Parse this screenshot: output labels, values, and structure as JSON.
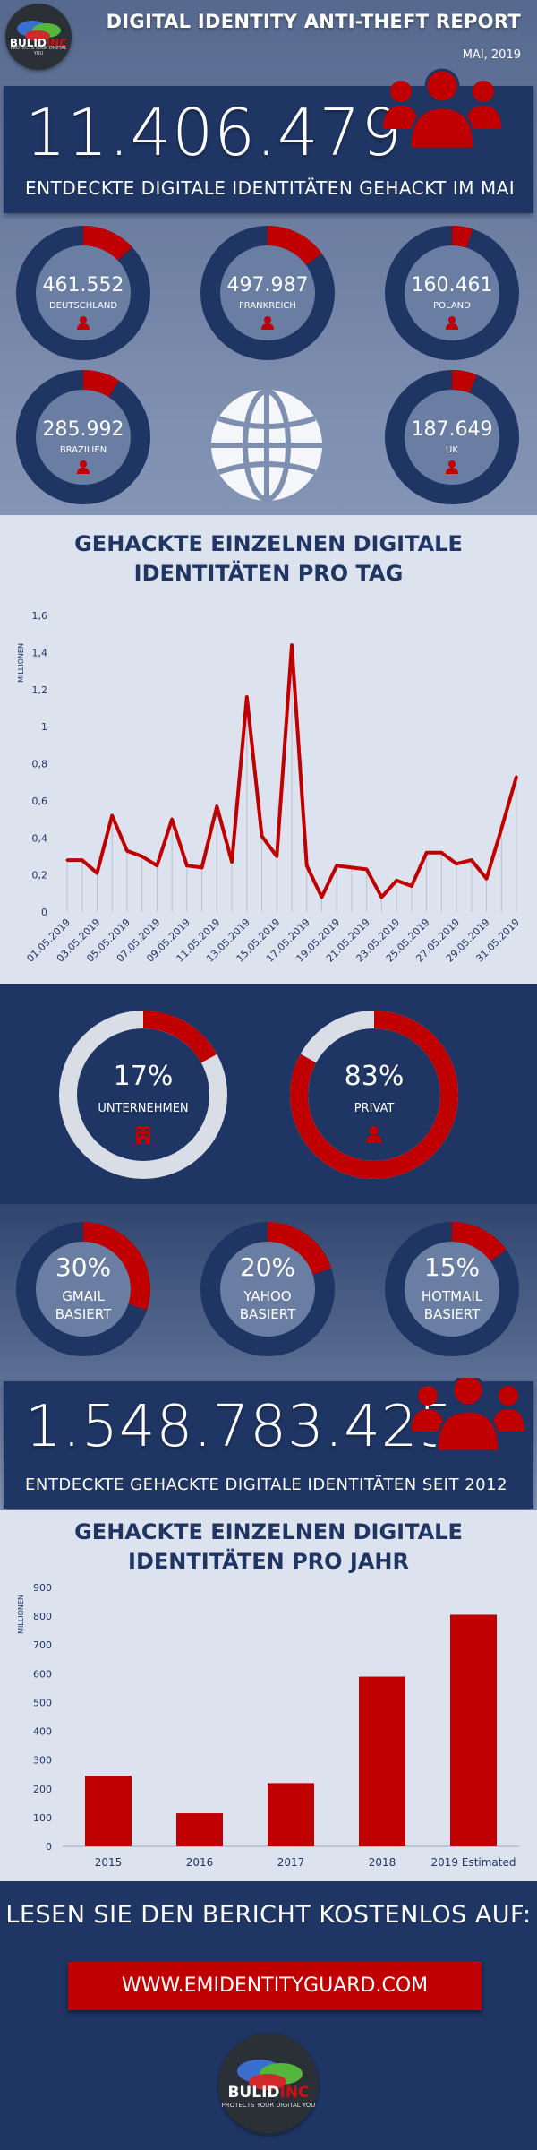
{
  "header": {
    "title": "DIGITAL IDENTITY ANTI-THEFT REPORT",
    "subtitle": "MAI, 2019",
    "logo_text_1": "BUL",
    "logo_text_2": "ID",
    "logo_text_3": "INC",
    "logo_tagline": "PROTECTS YOUR DIGITAL YOU"
  },
  "may_total": {
    "number": "11.406.479",
    "caption": "ENTDECKTE DIGITALE IDENTITÄTEN GEHACKT IM MAI"
  },
  "countries": [
    {
      "value": "461.552",
      "label": "DEUTSCHLAND",
      "share": 0.13
    },
    {
      "value": "497.987",
      "label": "FRANKREICH",
      "share": 0.15
    },
    {
      "value": "160.461",
      "label": "POLAND",
      "share": 0.05
    },
    {
      "value": "285.992",
      "label": "BRAZILIEN",
      "share": 0.09
    },
    {
      "value": "187.649",
      "label": "UK",
      "share": 0.06
    }
  ],
  "daily_chart_title_1": "GEHACKTE EINZELNEN DIGITALE",
  "daily_chart_title_2": "IDENTITÄTEN PRO TAG",
  "yearly_chart_title_1": "GEHACKTE EINZELNEN DIGITALE",
  "yearly_chart_title_2": "IDENTITÄTEN PRO JAHR",
  "split": [
    {
      "percent": "17%",
      "label": "UNTERNEHMEN",
      "share": 0.17
    },
    {
      "percent": "83%",
      "label": "PRIVAT",
      "share": 0.83
    }
  ],
  "email": [
    {
      "percent": "30%",
      "label_1": "GMAIL",
      "label_2": "BASIERT",
      "share": 0.3
    },
    {
      "percent": "20%",
      "label_1": "YAHOO",
      "label_2": "BASIERT",
      "share": 0.2
    },
    {
      "percent": "15%",
      "label_1": "HOTMAIL",
      "label_2": "BASIERT",
      "share": 0.15
    }
  ],
  "all_time": {
    "number": "1.548.783.425",
    "caption": "ENTDECKTE GEHACKTE DIGITALE IDENTITÄTEN SEIT 2012"
  },
  "footer": {
    "cta": "LESEN SIE DEN BERICHT KOSTENLOS AUF:",
    "url": "WWW.EMIDENTITYGUARD.COM"
  },
  "colors": {
    "navy": "#1f3564",
    "red": "#c00000",
    "light": "#dde3ee"
  },
  "chart_data": [
    {
      "type": "line",
      "ylabel": "MILLIONEN",
      "ylim": [
        0,
        1.6
      ],
      "yticks": [
        "0",
        "0,2",
        "0,4",
        "0,6",
        "0,8",
        "1",
        "1,2",
        "1,4",
        "1,6"
      ],
      "x_tick_labels": [
        "01.05.2019",
        "03.05.2019",
        "05.05.2019",
        "07.05.2019",
        "09.05.2019",
        "11.05.2019",
        "13.05.2019",
        "15.05.2019",
        "17.05.2019",
        "19.05.2019",
        "21.05.2019",
        "23.05.2019",
        "25.05.2019",
        "27.05.2019",
        "29.05.2019",
        "31.05.2019"
      ],
      "x": [
        "01.05.2019",
        "02.05.2019",
        "03.05.2019",
        "04.05.2019",
        "05.05.2019",
        "06.05.2019",
        "07.05.2019",
        "08.05.2019",
        "09.05.2019",
        "10.05.2019",
        "11.05.2019",
        "12.05.2019",
        "13.05.2019",
        "14.05.2019",
        "15.05.2019",
        "16.05.2019",
        "17.05.2019",
        "18.05.2019",
        "19.05.2019",
        "20.05.2019",
        "21.05.2019",
        "22.05.2019",
        "23.05.2019",
        "24.05.2019",
        "25.05.2019",
        "26.05.2019",
        "27.05.2019",
        "28.05.2019",
        "29.05.2019",
        "30.05.2019",
        "31.05.2019"
      ],
      "values": [
        0.28,
        0.28,
        0.21,
        0.52,
        0.33,
        0.3,
        0.25,
        0.5,
        0.25,
        0.24,
        0.57,
        0.27,
        1.16,
        0.41,
        0.3,
        1.44,
        0.25,
        0.08,
        0.25,
        0.24,
        0.23,
        0.08,
        0.17,
        0.14,
        0.32,
        0.32,
        0.26,
        0.28,
        0.18,
        0.45,
        0.73
      ]
    },
    {
      "type": "bar",
      "ylabel": "MILLIONEN",
      "ylim": [
        0,
        900
      ],
      "yticks": [
        "0",
        "100",
        "200",
        "300",
        "400",
        "500",
        "600",
        "700",
        "800",
        "900"
      ],
      "categories": [
        "2015",
        "2016",
        "2017",
        "2018",
        "2019 Estimated"
      ],
      "values": [
        245,
        115,
        220,
        590,
        805
      ]
    }
  ]
}
